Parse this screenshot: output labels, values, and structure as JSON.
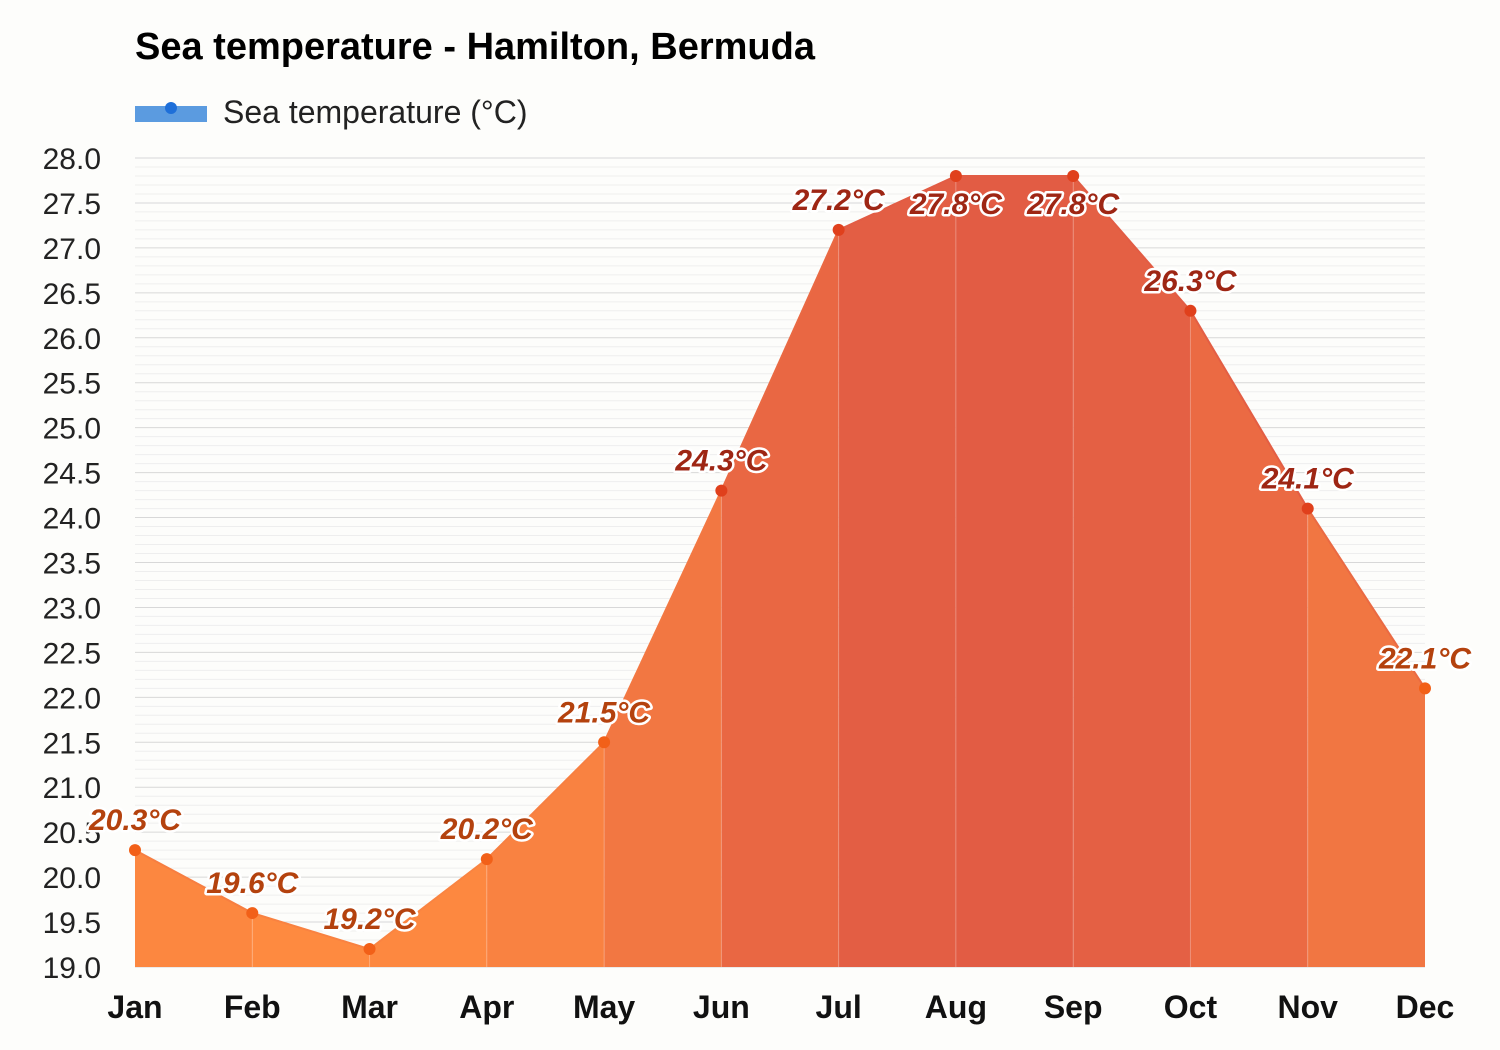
{
  "title": "Sea temperature - Hamilton, Bermuda",
  "legend": {
    "label": "Sea temperature (°C)"
  },
  "chart_data": {
    "type": "area",
    "title": "Sea temperature - Hamilton, Bermuda",
    "categories": [
      "Jan",
      "Feb",
      "Mar",
      "Apr",
      "May",
      "Jun",
      "Jul",
      "Aug",
      "Sep",
      "Oct",
      "Nov",
      "Dec"
    ],
    "series": [
      {
        "name": "Sea temperature (°C)",
        "values": [
          20.3,
          19.6,
          19.2,
          20.2,
          21.5,
          24.3,
          27.2,
          27.8,
          27.8,
          26.3,
          24.1,
          22.1
        ],
        "labels": [
          "20.3°C",
          "19.6°C",
          "19.2°C",
          "20.2°C",
          "21.5°C",
          "24.3°C",
          "27.2°C",
          "27.8°C",
          "27.8°C",
          "26.3°C",
          "24.1°C",
          "22.1°C"
        ]
      }
    ],
    "ylim": [
      19.0,
      28.0
    ],
    "yticks": [
      "19.0",
      "19.5",
      "20.0",
      "20.5",
      "21.0",
      "21.5",
      "22.0",
      "22.5",
      "23.0",
      "23.5",
      "24.0",
      "24.5",
      "25.0",
      "25.5",
      "26.0",
      "26.5",
      "27.0",
      "27.5",
      "28.0"
    ],
    "grid": true,
    "legend_position": "top-left"
  }
}
